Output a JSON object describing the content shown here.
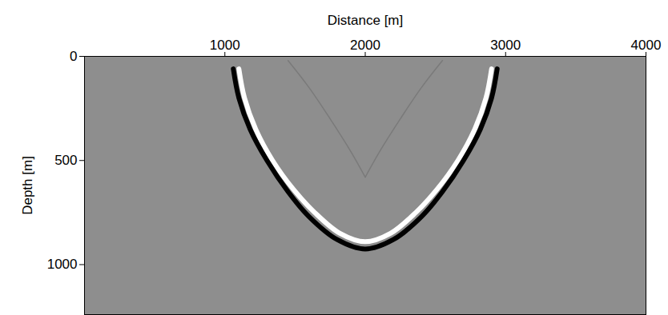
{
  "chart_data": {
    "type": "line",
    "x_label": "Distance [m]",
    "y_label": "Depth [m]",
    "xlim": [
      0,
      4000
    ],
    "xticks": [
      1000,
      2000,
      3000,
      4000
    ],
    "ylim": [
      0,
      1240
    ],
    "yticks": [
      0,
      500,
      1000
    ],
    "series": [
      {
        "color": "#ffffff",
        "line_style": "solid",
        "x": [
          1100,
          1140,
          1220,
          1340,
          1490,
          1640,
          1820,
          2000,
          2180,
          2360,
          2510,
          2660,
          2780,
          2860,
          2900
        ],
        "values": [
          60,
          200,
          350,
          500,
          640,
          750,
          850,
          890,
          850,
          750,
          640,
          500,
          350,
          200,
          60
        ]
      },
      {
        "color": "#000000",
        "line_style": "solid",
        "x": [
          1060,
          1100,
          1180,
          1300,
          1450,
          1600,
          1800,
          2000,
          2200,
          2400,
          2550,
          2700,
          2820,
          2900,
          2940
        ],
        "values": [
          60,
          200,
          350,
          500,
          650,
          770,
          880,
          925,
          880,
          770,
          650,
          500,
          350,
          200,
          60
        ]
      },
      {
        "color": "#7a7a7a",
        "line_style": "thin",
        "x": [
          1450,
          1600,
          1750,
          1900,
          2000
        ],
        "values": [
          20,
          150,
          300,
          460,
          580
        ]
      },
      {
        "color": "#7a7a7a",
        "line_style": "thin",
        "x": [
          2550,
          2400,
          2250,
          2100,
          2000
        ],
        "values": [
          20,
          150,
          300,
          460,
          580
        ]
      }
    ]
  }
}
